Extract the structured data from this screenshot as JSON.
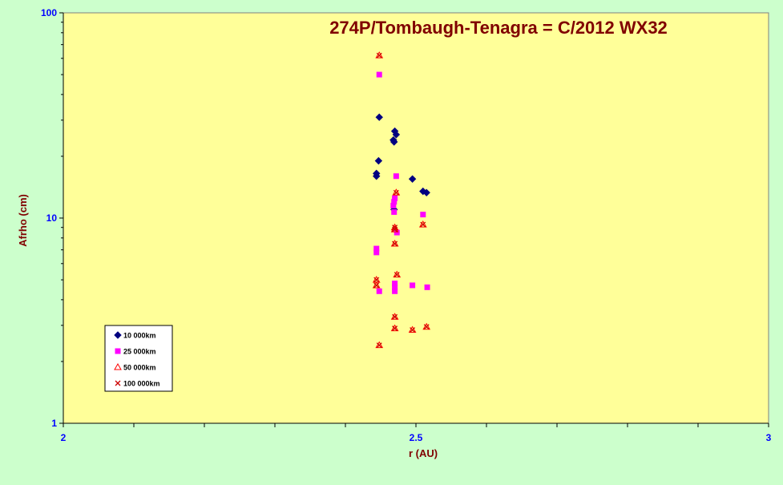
{
  "colors": {
    "background": "#ccffcc",
    "plot_area": "#ffff99",
    "title": "#800000",
    "axis_label": "#800000",
    "tick_label": "#0000ff",
    "series_10000": "#000080",
    "series_25000": "#ff00ff",
    "series_50000": "#ff0000",
    "series_100000": "#cc0000"
  },
  "chart_data": {
    "type": "scatter",
    "title": "274P/Tombaugh-Tenagra = C/2012 WX32",
    "xlabel": "r (AU)",
    "ylabel": "Afrho (cm)",
    "xlim": [
      2,
      3
    ],
    "ylim": [
      1,
      100
    ],
    "y_scale": "log",
    "x_ticks": [
      2,
      2.5,
      3
    ],
    "x_tick_labels": [
      "2",
      "2.5",
      "3"
    ],
    "y_ticks": [
      1,
      10,
      100
    ],
    "y_tick_labels": [
      "1",
      "10",
      "100"
    ],
    "grid": false,
    "legend_position": "bottom-left",
    "series": [
      {
        "name": "10 000km",
        "marker": "diamond",
        "color": "#000080",
        "points": [
          [
            2.448,
            31
          ],
          [
            2.447,
            19
          ],
          [
            2.444,
            16.5
          ],
          [
            2.444,
            16.0
          ],
          [
            2.47,
            26.5
          ],
          [
            2.472,
            25.5
          ],
          [
            2.468,
            24
          ],
          [
            2.469,
            23.5
          ],
          [
            2.495,
            15.5
          ],
          [
            2.51,
            13.5
          ],
          [
            2.515,
            13.3
          ],
          [
            2.469,
            11
          ]
        ]
      },
      {
        "name": "25 000km",
        "marker": "square",
        "color": "#ff00ff",
        "points": [
          [
            2.448,
            50
          ],
          [
            2.472,
            16
          ],
          [
            2.47,
            12.5
          ],
          [
            2.469,
            12
          ],
          [
            2.468,
            11.5
          ],
          [
            2.469,
            10.7
          ],
          [
            2.51,
            10.4
          ],
          [
            2.473,
            8.5
          ],
          [
            2.444,
            7.1
          ],
          [
            2.444,
            6.8
          ],
          [
            2.47,
            4.8
          ],
          [
            2.47,
            4.6
          ],
          [
            2.47,
            4.4
          ],
          [
            2.495,
            4.7
          ],
          [
            2.516,
            4.6
          ],
          [
            2.448,
            4.4
          ]
        ]
      },
      {
        "name": "50 000km",
        "marker": "triangle",
        "color": "#ff0000",
        "points": [
          [
            2.448,
            62
          ],
          [
            2.472,
            13.3
          ],
          [
            2.47,
            9
          ],
          [
            2.47,
            8.8
          ],
          [
            2.51,
            9.3
          ],
          [
            2.47,
            7.5
          ],
          [
            2.473,
            5.3
          ],
          [
            2.444,
            5
          ],
          [
            2.444,
            4.7
          ],
          [
            2.47,
            3.3
          ],
          [
            2.47,
            2.9
          ],
          [
            2.495,
            2.85
          ],
          [
            2.515,
            2.95
          ],
          [
            2.448,
            2.4
          ]
        ]
      },
      {
        "name": "100 000km",
        "marker": "x",
        "color": "#cc0000",
        "points": [
          [
            2.448,
            62
          ],
          [
            2.472,
            13.3
          ],
          [
            2.47,
            9
          ],
          [
            2.47,
            8.8
          ],
          [
            2.51,
            9.3
          ],
          [
            2.47,
            7.5
          ],
          [
            2.473,
            5.3
          ],
          [
            2.444,
            5
          ],
          [
            2.444,
            4.7
          ],
          [
            2.47,
            3.3
          ],
          [
            2.47,
            2.9
          ],
          [
            2.495,
            2.85
          ],
          [
            2.515,
            2.95
          ],
          [
            2.448,
            2.4
          ]
        ]
      }
    ]
  }
}
